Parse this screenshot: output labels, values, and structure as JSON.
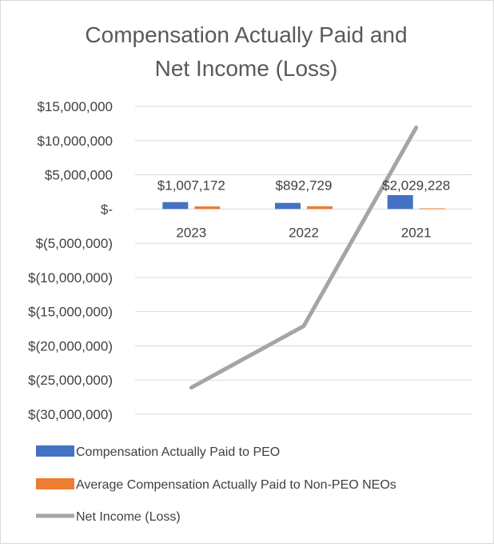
{
  "chart_data": {
    "type": "bar",
    "title_lines": [
      "Compensation Actually Paid and",
      "Net Income (Loss)"
    ],
    "categories": [
      "2023",
      "2022",
      "2021"
    ],
    "ylim": [
      -30000000,
      15000000
    ],
    "yticks": [
      15000000,
      10000000,
      5000000,
      0,
      -5000000,
      -10000000,
      -15000000,
      -20000000,
      -25000000,
      -30000000
    ],
    "ytick_labels": [
      "$15,000,000",
      "$10,000,000",
      "$5,000,000",
      "$-",
      "$(5,000,000)",
      "$(10,000,000)",
      "$(15,000,000)",
      "$(20,000,000)",
      "$(25,000,000)",
      "$(30,000,000)"
    ],
    "grid": true,
    "legend_position": "bottom",
    "series": [
      {
        "name": "Compensation Actually Paid to PEO",
        "kind": "bar",
        "color": "#4472c4",
        "values": [
          1007172,
          892729,
          2029228
        ],
        "labels": [
          "$1,007,172",
          "$892,729",
          "$2,029,228"
        ]
      },
      {
        "name": "Average Compensation Actually Paid to Non-PEO NEOs",
        "kind": "bar",
        "color": "#ed7d31",
        "values": [
          380000,
          400000,
          90000
        ]
      },
      {
        "name": "Net Income (Loss)",
        "kind": "line",
        "color": "#a5a5a5",
        "values": [
          -26100000,
          -17100000,
          11900000
        ]
      }
    ]
  }
}
